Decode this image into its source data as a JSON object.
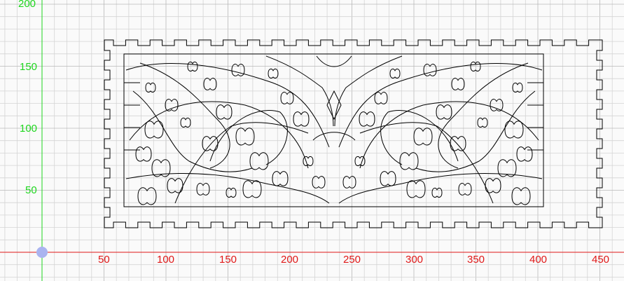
{
  "canvas": {
    "x_axis_labels": [
      "50",
      "100",
      "150",
      "200",
      "250",
      "300",
      "350",
      "400",
      "450"
    ],
    "y_axis_labels": [
      "200",
      "150",
      "100",
      "50"
    ],
    "colors": {
      "background": "#fafafa",
      "grid_minor": "#d4d4d4",
      "grid_major": "#b8b8b8",
      "x_axis": "#e01818",
      "y_axis": "#1ed61e",
      "origin_marker": "#aab4f0",
      "drawing": "#000000"
    }
  },
  "drawing": {
    "type": "finger-joint box panel with ornamental vine cut-out"
  }
}
